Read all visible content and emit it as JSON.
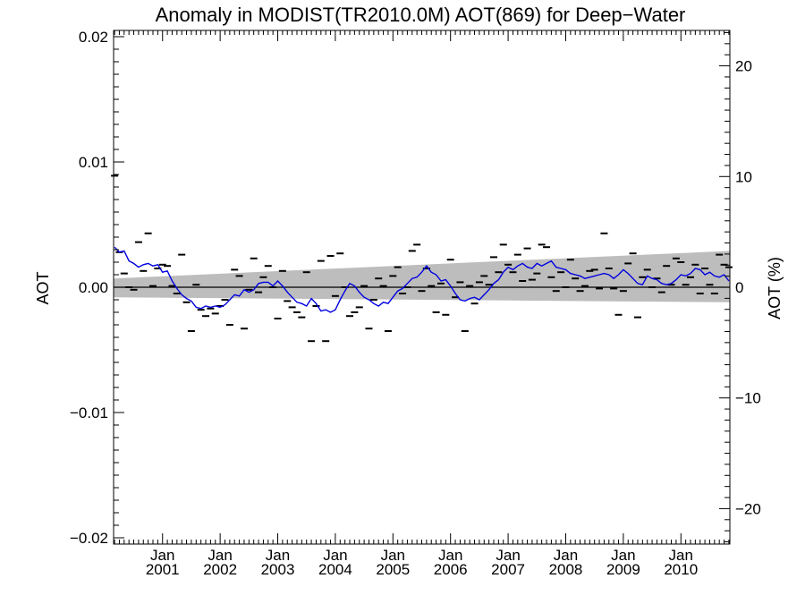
{
  "chart_data": {
    "type": "line",
    "title": "Anomaly in MODIST(TR2010.0M) AOT(869) for Deep−Water",
    "ylabel": "AOT",
    "ylabel_right": "AOT (%)",
    "xlabel": "",
    "x_range": [
      "2000-03",
      "2010-11"
    ],
    "ylim": [
      -0.0205,
      0.0205
    ],
    "ylim_right": [
      -23.2,
      23.2
    ],
    "y_ticks": [
      {
        "value": 0.02,
        "label": "0.02"
      },
      {
        "value": 0.01,
        "label": "0.01"
      },
      {
        "value": 0.0,
        "label": "0.00"
      },
      {
        "value": -0.01,
        "label": "−0.01"
      },
      {
        "value": -0.02,
        "label": "−0.02"
      }
    ],
    "y_right_ticks": [
      {
        "value": 20,
        "label": "20"
      },
      {
        "value": 10,
        "label": "10"
      },
      {
        "value": 0,
        "label": "0"
      },
      {
        "value": -10,
        "label": "−10"
      },
      {
        "value": -20,
        "label": "−20"
      }
    ],
    "x_ticks": [
      {
        "date": "2001-01",
        "month": "Jan",
        "year": "2001"
      },
      {
        "date": "2002-01",
        "month": "Jan",
        "year": "2002"
      },
      {
        "date": "2003-01",
        "month": "Jan",
        "year": "2003"
      },
      {
        "date": "2004-01",
        "month": "Jan",
        "year": "2004"
      },
      {
        "date": "2005-01",
        "month": "Jan",
        "year": "2005"
      },
      {
        "date": "2006-01",
        "month": "Jan",
        "year": "2006"
      },
      {
        "date": "2007-01",
        "month": "Jan",
        "year": "2007"
      },
      {
        "date": "2008-01",
        "month": "Jan",
        "year": "2008"
      },
      {
        "date": "2009-01",
        "month": "Jan",
        "year": "2009"
      },
      {
        "date": "2010-01",
        "month": "Jan",
        "year": "2010"
      }
    ],
    "zero_line": 0.0,
    "trend_band": {
      "x": [
        "2000-03",
        "2010-11"
      ],
      "upper": [
        0.0007,
        0.0029
      ],
      "lower": [
        -0.0008,
        -0.0012
      ]
    },
    "monthly_anomalies": {
      "x": [
        "2000-03",
        "2000-04",
        "2000-05",
        "2000-06",
        "2000-07",
        "2000-08",
        "2000-09",
        "2000-10",
        "2000-11",
        "2000-12",
        "2001-01",
        "2001-02",
        "2001-03",
        "2001-04",
        "2001-05",
        "2001-06",
        "2001-07",
        "2001-08",
        "2001-09",
        "2001-10",
        "2001-11",
        "2001-12",
        "2002-01",
        "2002-02",
        "2002-03",
        "2002-04",
        "2002-05",
        "2002-06",
        "2002-07",
        "2002-08",
        "2002-09",
        "2002-10",
        "2002-11",
        "2002-12",
        "2003-01",
        "2003-02",
        "2003-03",
        "2003-04",
        "2003-05",
        "2003-06",
        "2003-07",
        "2003-08",
        "2003-09",
        "2003-10",
        "2003-11",
        "2003-12",
        "2004-01",
        "2004-02",
        "2004-03",
        "2004-04",
        "2004-05",
        "2004-06",
        "2004-07",
        "2004-08",
        "2004-09",
        "2004-10",
        "2004-11",
        "2004-12",
        "2005-01",
        "2005-02",
        "2005-03",
        "2005-04",
        "2005-05",
        "2005-06",
        "2005-07",
        "2005-08",
        "2005-09",
        "2005-10",
        "2005-11",
        "2005-12",
        "2006-01",
        "2006-02",
        "2006-03",
        "2006-04",
        "2006-05",
        "2006-06",
        "2006-07",
        "2006-08",
        "2006-09",
        "2006-10",
        "2006-11",
        "2006-12",
        "2007-01",
        "2007-02",
        "2007-03",
        "2007-04",
        "2007-05",
        "2007-06",
        "2007-07",
        "2007-08",
        "2007-09",
        "2007-10",
        "2007-11",
        "2007-12",
        "2008-01",
        "2008-02",
        "2008-03",
        "2008-04",
        "2008-05",
        "2008-06",
        "2008-07",
        "2008-08",
        "2008-09",
        "2008-10",
        "2008-11",
        "2008-12",
        "2009-01",
        "2009-02",
        "2009-03",
        "2009-04",
        "2009-05",
        "2009-06",
        "2009-07",
        "2009-08",
        "2009-09",
        "2009-10",
        "2009-11",
        "2009-12",
        "2010-01",
        "2010-02",
        "2010-03",
        "2010-04",
        "2010-05",
        "2010-06",
        "2010-07",
        "2010-08",
        "2010-09",
        "2010-10",
        "2010-11"
      ],
      "values": [
        0.0089,
        0.0028,
        0.0011,
        0.0,
        -0.0002,
        0.0036,
        0.0013,
        0.0043,
        0.0001,
        0.0015,
        0.0018,
        0.0017,
        0.0001,
        -0.0005,
        0.0026,
        -0.0012,
        -0.0035,
        0.0002,
        -0.0018,
        -0.0023,
        -0.0017,
        -0.0021,
        -0.0015,
        -0.001,
        -0.003,
        0.0014,
        0.0009,
        -0.0033,
        -0.0002,
        0.0023,
        -0.0004,
        0.0008,
        0.0017,
        0.0,
        -0.0025,
        0.0013,
        -0.0011,
        -0.0016,
        -0.002,
        -0.0024,
        0.0012,
        -0.0043,
        -0.0015,
        0.0021,
        -0.0043,
        0.0025,
        -0.0007,
        0.0027,
        0.0,
        -0.0023,
        -0.002,
        -0.0016,
        0.0001,
        -0.0033,
        -0.001,
        0.0007,
        0.0001,
        -0.0035,
        0.0009,
        0.0016,
        -0.0005,
        0.0,
        0.0029,
        0.0034,
        -0.0003,
        0.0015,
        0.0001,
        -0.002,
        0.0003,
        -0.0022,
        0.0022,
        -0.0008,
        0.0004,
        -0.0035,
        0.0001,
        -0.0013,
        0.0004,
        0.0009,
        0.0002,
        0.0024,
        0.0012,
        0.0034,
        0.0018,
        0.0012,
        0.0026,
        0.0005,
        0.0031,
        0.0006,
        0.0011,
        0.0034,
        0.0032,
        0.0008,
        -0.0003,
        0.0012,
        0.0,
        0.0022,
        0.0007,
        -0.0003,
        0.0001,
        0.0013,
        0.0014,
        -0.0001,
        0.0043,
        0.0015,
        -0.0001,
        -0.0022,
        -0.0003,
        0.0019,
        0.0027,
        -0.0024,
        0.0008,
        0.0014,
        0.0,
        0.0007,
        -0.0004,
        0.0017,
        0.0002,
        0.0023,
        0.002,
        0.0002,
        0.0008,
        0.0018,
        -0.0005,
        0.0015,
        0.0002,
        -0.0005,
        0.0026,
        0.0018,
        0.0016
      ]
    },
    "series": [
      {
        "color": "#0000e0",
        "x": [
          "2000-03",
          "2000-04",
          "2000-05",
          "2000-06",
          "2000-07",
          "2000-08",
          "2000-09",
          "2000-10",
          "2000-11",
          "2000-12",
          "2001-01",
          "2001-02",
          "2001-03",
          "2001-04",
          "2001-05",
          "2001-06",
          "2001-07",
          "2001-08",
          "2001-09",
          "2001-10",
          "2001-11",
          "2001-12",
          "2002-01",
          "2002-02",
          "2002-03",
          "2002-04",
          "2002-05",
          "2002-06",
          "2002-07",
          "2002-08",
          "2002-09",
          "2002-10",
          "2002-11",
          "2002-12",
          "2003-01",
          "2003-02",
          "2003-03",
          "2003-04",
          "2003-05",
          "2003-06",
          "2003-07",
          "2003-08",
          "2003-09",
          "2003-10",
          "2003-11",
          "2003-12",
          "2004-01",
          "2004-02",
          "2004-03",
          "2004-04",
          "2004-05",
          "2004-06",
          "2004-07",
          "2004-08",
          "2004-09",
          "2004-10",
          "2004-11",
          "2004-12",
          "2005-01",
          "2005-02",
          "2005-03",
          "2005-04",
          "2005-05",
          "2005-06",
          "2005-07",
          "2005-08",
          "2005-09",
          "2005-10",
          "2005-11",
          "2005-12",
          "2006-01",
          "2006-02",
          "2006-03",
          "2006-04",
          "2006-05",
          "2006-06",
          "2006-07",
          "2006-08",
          "2006-09",
          "2006-10",
          "2006-11",
          "2006-12",
          "2007-01",
          "2007-02",
          "2007-03",
          "2007-04",
          "2007-05",
          "2007-06",
          "2007-07",
          "2007-08",
          "2007-09",
          "2007-10",
          "2007-11",
          "2007-12",
          "2008-01",
          "2008-02",
          "2008-03",
          "2008-04",
          "2008-05",
          "2008-06",
          "2008-07",
          "2008-08",
          "2008-09",
          "2008-10",
          "2008-11",
          "2008-12",
          "2009-01",
          "2009-02",
          "2009-03",
          "2009-04",
          "2009-05",
          "2009-06",
          "2009-07",
          "2009-08",
          "2009-09",
          "2009-10",
          "2009-11",
          "2009-12",
          "2010-01",
          "2010-02",
          "2010-03",
          "2010-04",
          "2010-05",
          "2010-06",
          "2010-07",
          "2010-08",
          "2010-09",
          "2010-10",
          "2010-11"
        ],
        "values": [
          0.0032,
          0.0028,
          0.0029,
          0.0021,
          0.0019,
          0.0016,
          0.0018,
          0.0019,
          0.0017,
          0.0018,
          0.0012,
          0.0013,
          0.0005,
          -0.0001,
          -0.0006,
          -0.0009,
          -0.0011,
          -0.0016,
          -0.0017,
          -0.0015,
          -0.0016,
          -0.0015,
          -0.0016,
          -0.0014,
          -0.001,
          -0.0006,
          -0.0007,
          -0.0002,
          -0.0004,
          -0.0002,
          0.0003,
          0.0004,
          0.0004,
          0.0001,
          0.0005,
          0.0001,
          -0.0004,
          -0.0008,
          -0.0012,
          -0.0013,
          -0.0015,
          -0.0009,
          -0.0013,
          -0.0019,
          -0.0018,
          -0.002,
          -0.0018,
          -0.001,
          -0.0003,
          0.0003,
          0.0001,
          -0.0004,
          -0.0008,
          -0.001,
          -0.0013,
          -0.0015,
          -0.0012,
          -0.0013,
          -0.0008,
          -0.0003,
          -0.0001,
          0.0003,
          0.0007,
          0.0008,
          0.0012,
          0.0017,
          0.0012,
          0.001,
          0.0005,
          0.0006,
          0.0001,
          -0.0005,
          -0.001,
          -0.0011,
          -0.0009,
          -0.0008,
          -0.001,
          -0.0006,
          -0.0002,
          0.0003,
          0.0006,
          0.0012,
          0.0016,
          0.0014,
          0.0017,
          0.0019,
          0.0016,
          0.0015,
          0.0019,
          0.0017,
          0.0019,
          0.0021,
          0.0016,
          0.0015,
          0.0014,
          0.0011,
          0.001,
          0.0009,
          0.0007,
          0.0008,
          0.0009,
          0.001,
          0.0011,
          0.001,
          0.0007,
          0.001,
          0.0014,
          0.0011,
          0.0007,
          0.0003,
          0.0002,
          0.0009,
          0.0007,
          0.0006,
          0.0003,
          0.0002,
          0.0003,
          0.0006,
          0.001,
          0.0009,
          0.0011,
          0.0015,
          0.0014,
          0.001,
          0.0012,
          0.0009,
          0.0008,
          0.001,
          0.0005
        ]
      }
    ]
  }
}
